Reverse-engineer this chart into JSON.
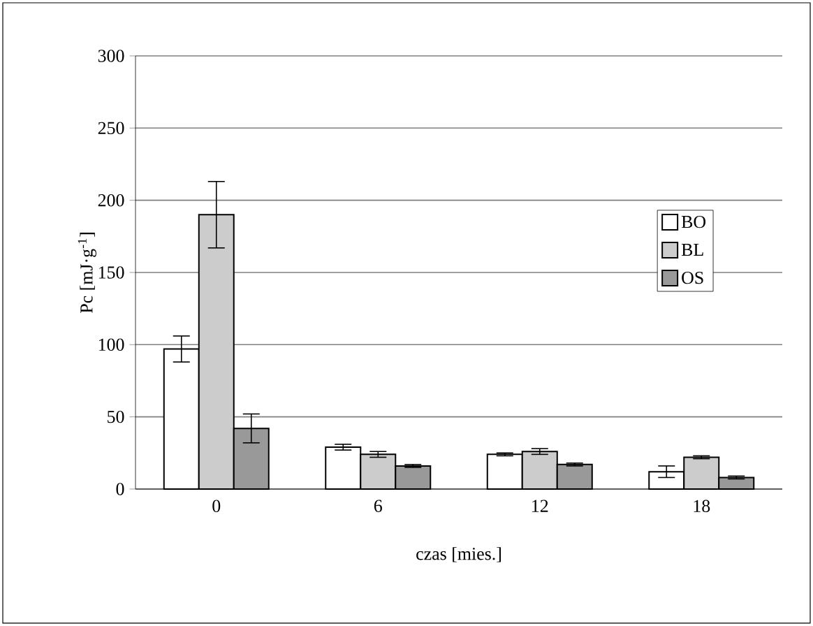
{
  "chart_data": {
    "type": "bar",
    "xlabel": "czas [mies.]",
    "ylabel": "Pc [mJ·g$^{-1}$]",
    "categories": [
      "0",
      "6",
      "12",
      "18"
    ],
    "series": [
      {
        "name": "BO",
        "color": "#ffffff",
        "values": [
          97,
          29,
          24,
          12
        ],
        "errors": [
          9,
          2,
          1,
          4
        ]
      },
      {
        "name": "BL",
        "color": "#cccccc",
        "values": [
          190,
          24,
          26,
          22
        ],
        "errors": [
          23,
          2,
          2,
          1
        ]
      },
      {
        "name": "OS",
        "color": "#999999",
        "values": [
          42,
          16,
          17,
          8
        ],
        "errors": [
          10,
          1,
          1,
          1
        ]
      }
    ],
    "ylim": [
      0,
      300
    ],
    "yticks": [
      0,
      50,
      100,
      150,
      200,
      250,
      300
    ],
    "grid": "y",
    "legend": "right"
  }
}
